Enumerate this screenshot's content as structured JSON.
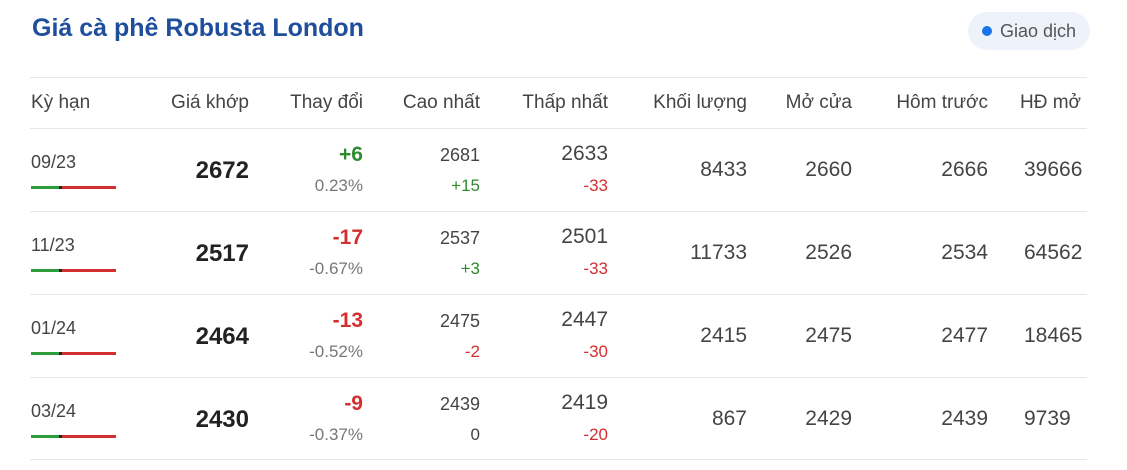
{
  "title": "Giá cà phê Robusta London",
  "status": {
    "label": "Giao dịch",
    "dot_color": "#1a73e8"
  },
  "colors": {
    "up": "#2e8b2e",
    "down": "#d32f2f",
    "title": "#1f4e9c"
  },
  "headers": {
    "term": "Kỳ hạn",
    "price": "Giá khớp",
    "change": "Thay đổi",
    "high": "Cao nhất",
    "low": "Thấp nhất",
    "volume": "Khối lượng",
    "open": "Mở cửa",
    "prev": "Hôm trước",
    "oi": "HĐ mở"
  },
  "rows": [
    {
      "term": "09/23",
      "price": "2672",
      "change": "+6",
      "change_dir": "up",
      "pct": "0.23%",
      "high": "2681",
      "high_diff": "+15",
      "high_dir": "up",
      "low": "2633",
      "low_diff": "-33",
      "low_dir": "down",
      "volume": "8433",
      "open": "2660",
      "prev": "2666",
      "oi": "39666"
    },
    {
      "term": "11/23",
      "price": "2517",
      "change": "-17",
      "change_dir": "down",
      "pct": "-0.67%",
      "high": "2537",
      "high_diff": "+3",
      "high_dir": "up",
      "low": "2501",
      "low_diff": "-33",
      "low_dir": "down",
      "volume": "11733",
      "open": "2526",
      "prev": "2534",
      "oi": "64562"
    },
    {
      "term": "01/24",
      "price": "2464",
      "change": "-13",
      "change_dir": "down",
      "pct": "-0.52%",
      "high": "2475",
      "high_diff": "-2",
      "high_dir": "down",
      "low": "2447",
      "low_diff": "-30",
      "low_dir": "down",
      "volume": "2415",
      "open": "2475",
      "prev": "2477",
      "oi": "18465"
    },
    {
      "term": "03/24",
      "price": "2430",
      "change": "-9",
      "change_dir": "down",
      "pct": "-0.37%",
      "high": "2439",
      "high_diff": "0",
      "high_dir": "flat",
      "low": "2419",
      "low_diff": "-20",
      "low_dir": "down",
      "volume": "867",
      "open": "2429",
      "prev": "2439",
      "oi": "9739"
    }
  ]
}
